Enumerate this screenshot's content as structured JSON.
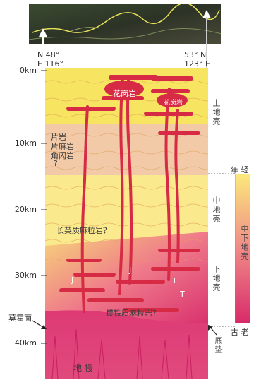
{
  "header": {
    "left_lat": "48°",
    "left_lon": "116°",
    "right_lat": "53°",
    "right_lon": "123°",
    "n": "N",
    "e": "E"
  },
  "depths": [
    "0km",
    "10km",
    "20km",
    "30km",
    "40km"
  ],
  "rocks": {
    "granite": "花岗岩",
    "granite2": "花岗岩",
    "schist": "片岩",
    "gneiss": "片麻岩",
    "amphibolite": "角闪岩",
    "q1": "?",
    "felsic": "长英质麻粒岩？",
    "mafic": "镁铁质麻粒岩？",
    "mantle": "地  幔",
    "j1": "J",
    "j2": "J",
    "t1": "T",
    "t2": "T"
  },
  "crust": {
    "upper": "上地壳",
    "middle": "中地壳",
    "lower": "下地壳",
    "mid_lower": "中下地壳"
  },
  "boundaries": {
    "moho": "莫霍面",
    "underplating": "底垫"
  },
  "age": {
    "young": "年 轻",
    "old": "古 老"
  },
  "colors": {
    "upper_crust": "#f6e35a",
    "gneiss_zone": "#f1c9a6",
    "middle_crust": "#fbe98a",
    "lower_crust": "#e8457a",
    "mantle": "#d92a6a",
    "intrusion": "#d62a45",
    "sat_bg": "#2f3a2a",
    "sat_line": "#e8e05a"
  }
}
